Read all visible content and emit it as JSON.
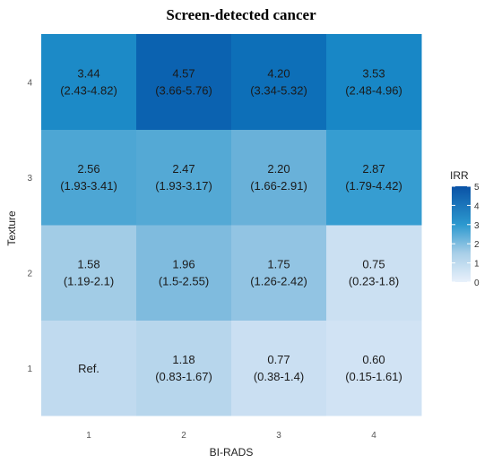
{
  "chart_data": {
    "type": "heatmap",
    "title": "Screen-detected cancer",
    "xlabel": "BI-RADS",
    "ylabel": "Texture",
    "x_categories": [
      "1",
      "2",
      "3",
      "4"
    ],
    "y_categories": [
      "1",
      "2",
      "3",
      "4"
    ],
    "cells": [
      {
        "x": "1",
        "y": "1",
        "value": 1.0,
        "label": "Ref.",
        "ci": ""
      },
      {
        "x": "2",
        "y": "1",
        "value": 1.18,
        "label": "1.18",
        "ci": "(0.83-1.67)"
      },
      {
        "x": "3",
        "y": "1",
        "value": 0.77,
        "label": "0.77",
        "ci": "(0.38-1.4)"
      },
      {
        "x": "4",
        "y": "1",
        "value": 0.6,
        "label": "0.60",
        "ci": "(0.15-1.61)"
      },
      {
        "x": "1",
        "y": "2",
        "value": 1.58,
        "label": "1.58",
        "ci": "(1.19-2.1)"
      },
      {
        "x": "2",
        "y": "2",
        "value": 1.96,
        "label": "1.96",
        "ci": "(1.5-2.55)"
      },
      {
        "x": "3",
        "y": "2",
        "value": 1.75,
        "label": "1.75",
        "ci": "(1.26-2.42)"
      },
      {
        "x": "4",
        "y": "2",
        "value": 0.75,
        "label": "0.75",
        "ci": "(0.23-1.8)"
      },
      {
        "x": "1",
        "y": "3",
        "value": 2.56,
        "label": "2.56",
        "ci": "(1.93-3.41)"
      },
      {
        "x": "2",
        "y": "3",
        "value": 2.47,
        "label": "2.47",
        "ci": "(1.93-3.17)"
      },
      {
        "x": "3",
        "y": "3",
        "value": 2.2,
        "label": "2.20",
        "ci": "(1.66-2.91)"
      },
      {
        "x": "4",
        "y": "3",
        "value": 2.87,
        "label": "2.87",
        "ci": "(1.79-4.42)"
      },
      {
        "x": "1",
        "y": "4",
        "value": 3.44,
        "label": "3.44",
        "ci": "(2.43-4.82)"
      },
      {
        "x": "2",
        "y": "4",
        "value": 4.57,
        "label": "4.57",
        "ci": "(3.66-5.76)"
      },
      {
        "x": "3",
        "y": "4",
        "value": 4.2,
        "label": "4.20",
        "ci": "(3.34-5.32)"
      },
      {
        "x": "4",
        "y": "4",
        "value": 3.53,
        "label": "3.53",
        "ci": "(2.48-4.96)"
      }
    ],
    "legend": {
      "title": "IRR",
      "min": 0,
      "max": 5,
      "ticks": [
        "0",
        "1",
        "2",
        "3",
        "4",
        "5"
      ],
      "placement": "right"
    },
    "color_scale": {
      "low": "#e9f1fb",
      "high": "#0a52a6"
    },
    "grid": true
  }
}
